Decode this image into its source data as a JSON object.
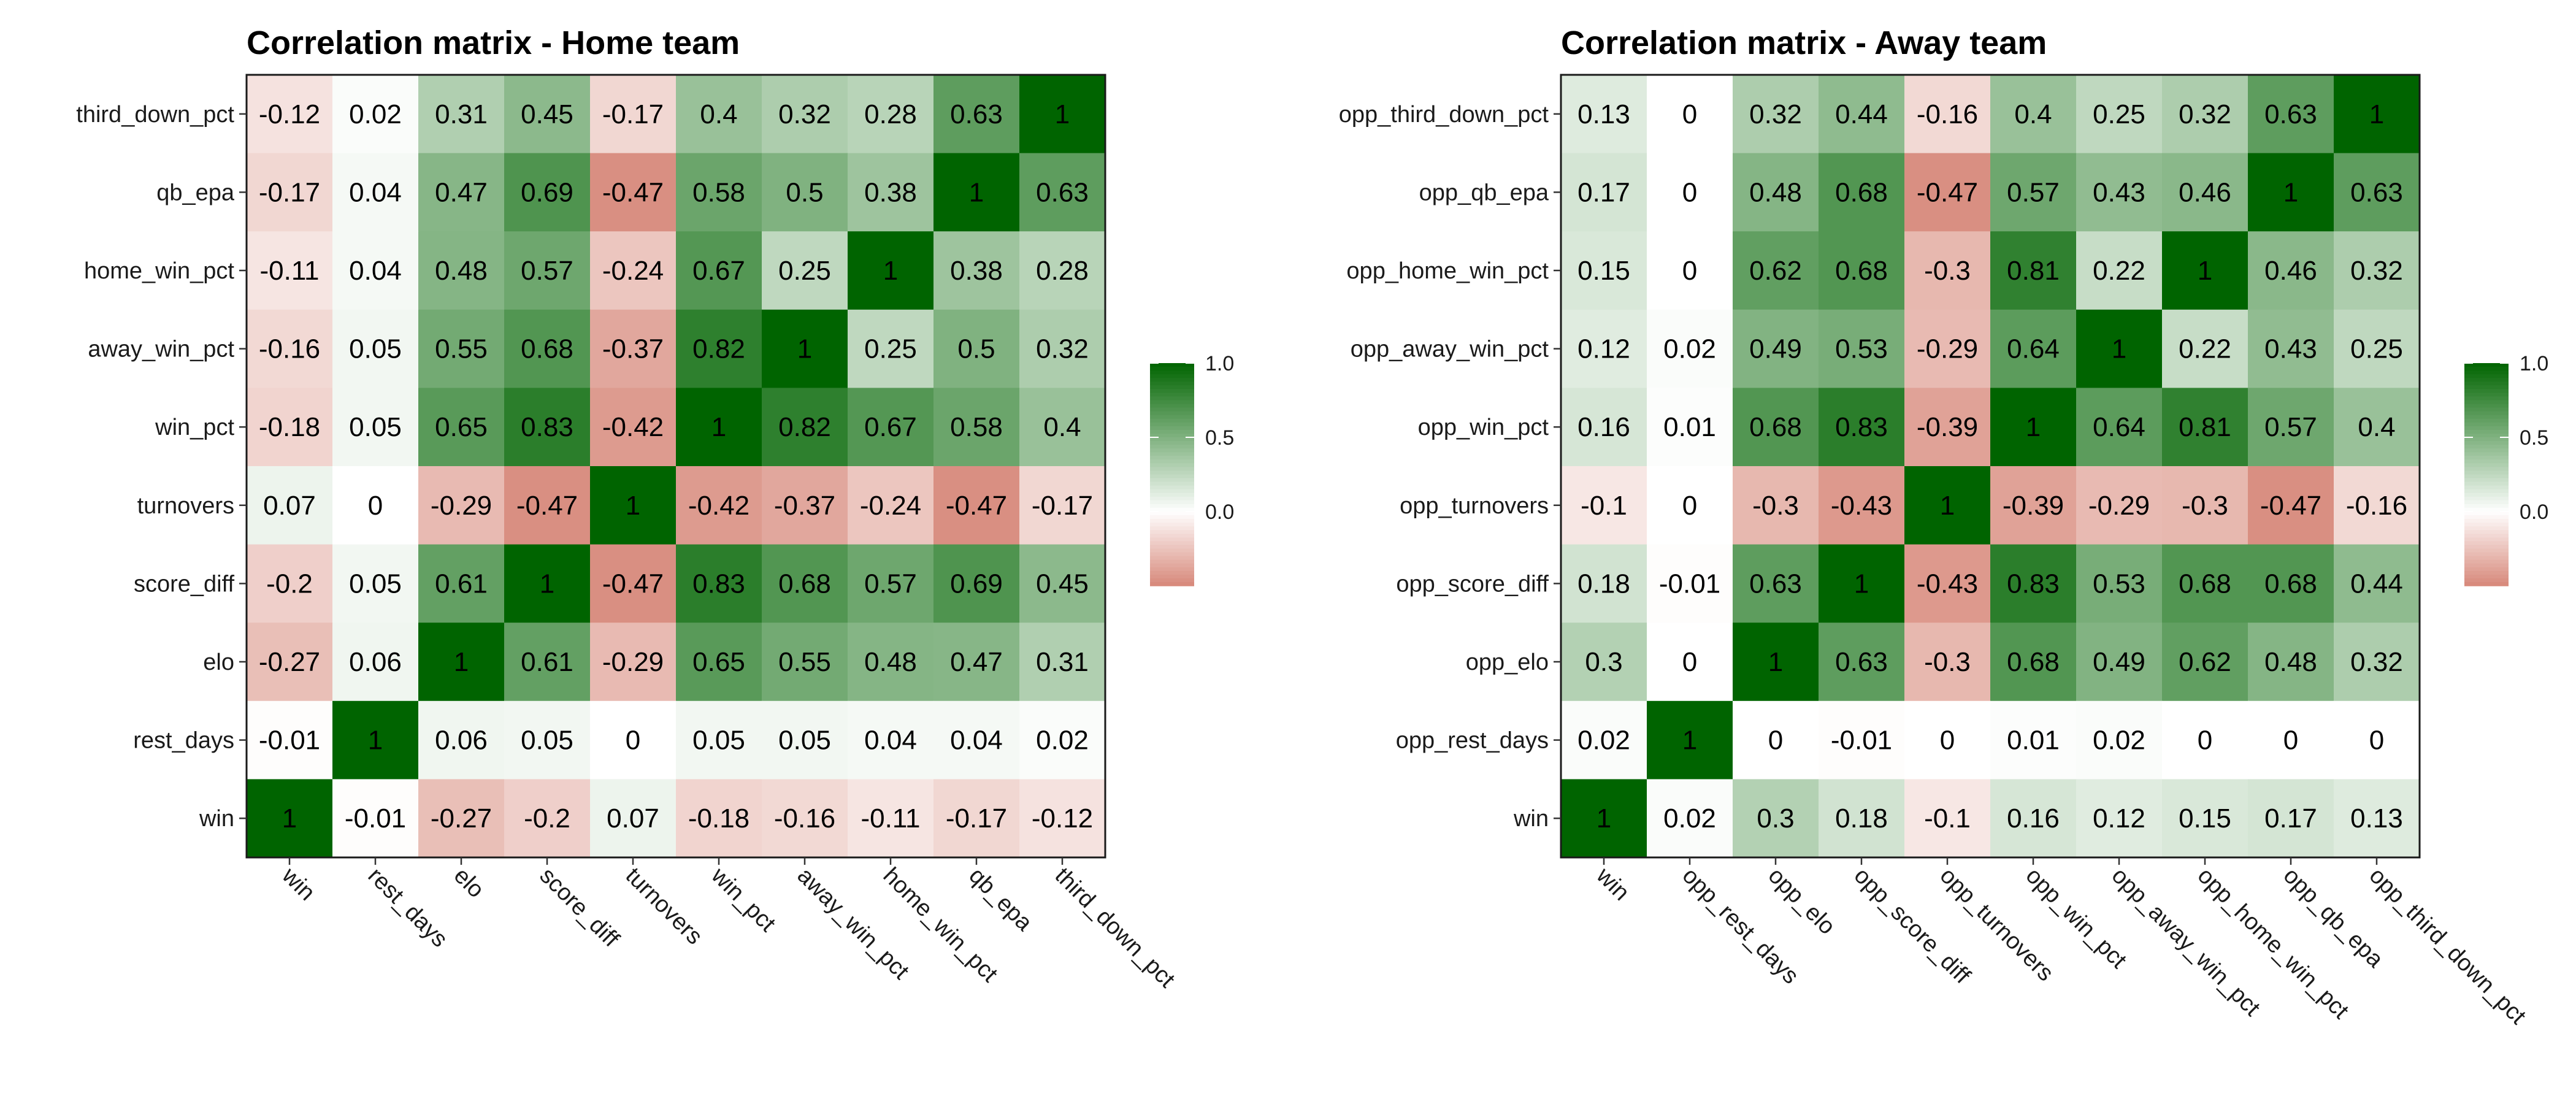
{
  "chart_data": [
    {
      "type": "heatmap",
      "title": "Correlation matrix - Home team",
      "x_labels": [
        "win",
        "rest_days",
        "elo",
        "score_diff",
        "turnovers",
        "win_pct",
        "away_win_pct",
        "home_win_pct",
        "qb_epa",
        "third_down_pct"
      ],
      "y_labels_top_to_bottom": [
        "third_down_pct",
        "qb_epa",
        "home_win_pct",
        "away_win_pct",
        "win_pct",
        "turnovers",
        "score_diff",
        "elo",
        "rest_days",
        "win"
      ],
      "values": [
        [
          -0.12,
          0.02,
          0.31,
          0.45,
          -0.17,
          0.4,
          0.32,
          0.28,
          0.63,
          1
        ],
        [
          -0.17,
          0.04,
          0.47,
          0.69,
          -0.47,
          0.58,
          0.5,
          0.38,
          1,
          0.63
        ],
        [
          -0.11,
          0.04,
          0.48,
          0.57,
          -0.24,
          0.67,
          0.25,
          1,
          0.38,
          0.28
        ],
        [
          -0.16,
          0.05,
          0.55,
          0.68,
          -0.37,
          0.82,
          1,
          0.25,
          0.5,
          0.32
        ],
        [
          -0.18,
          0.05,
          0.65,
          0.83,
          -0.42,
          1,
          0.82,
          0.67,
          0.58,
          0.4
        ],
        [
          0.07,
          0,
          -0.29,
          -0.47,
          1,
          -0.42,
          -0.37,
          -0.24,
          -0.47,
          -0.17
        ],
        [
          -0.2,
          0.05,
          0.61,
          1,
          -0.47,
          0.83,
          0.68,
          0.57,
          0.69,
          0.45
        ],
        [
          -0.27,
          0.06,
          1,
          0.61,
          -0.29,
          0.65,
          0.55,
          0.48,
          0.47,
          0.31
        ],
        [
          -0.01,
          1,
          0.06,
          0.05,
          0,
          0.05,
          0.05,
          0.04,
          0.04,
          0.02
        ],
        [
          1,
          -0.01,
          -0.27,
          -0.2,
          0.07,
          -0.18,
          -0.16,
          -0.11,
          -0.17,
          -0.12
        ]
      ],
      "color_scale": {
        "low": "#d7887a",
        "mid": "#ffffff",
        "high": "#006400",
        "domain": [
          -0.5,
          0,
          1
        ]
      },
      "legend": {
        "ticks": [
          "1.0",
          "0.5",
          "0.0"
        ],
        "tick_values": [
          1,
          0.5,
          0
        ],
        "placement": "right"
      }
    },
    {
      "type": "heatmap",
      "title": "Correlation matrix - Away team",
      "x_labels": [
        "win",
        "opp_rest_days",
        "opp_elo",
        "opp_score_diff",
        "opp_turnovers",
        "opp_win_pct",
        "opp_away_win_pct",
        "opp_home_win_pct",
        "opp_qb_epa",
        "opp_third_down_pct"
      ],
      "y_labels_top_to_bottom": [
        "opp_third_down_pct",
        "opp_qb_epa",
        "opp_home_win_pct",
        "opp_away_win_pct",
        "opp_win_pct",
        "opp_turnovers",
        "opp_score_diff",
        "opp_elo",
        "opp_rest_days",
        "win"
      ],
      "values": [
        [
          0.13,
          0,
          0.32,
          0.44,
          -0.16,
          0.4,
          0.25,
          0.32,
          0.63,
          1
        ],
        [
          0.17,
          0,
          0.48,
          0.68,
          -0.47,
          0.57,
          0.43,
          0.46,
          1,
          0.63
        ],
        [
          0.15,
          0,
          0.62,
          0.68,
          -0.3,
          0.81,
          0.22,
          1,
          0.46,
          0.32
        ],
        [
          0.12,
          0.02,
          0.49,
          0.53,
          -0.29,
          0.64,
          1,
          0.22,
          0.43,
          0.25
        ],
        [
          0.16,
          0.01,
          0.68,
          0.83,
          -0.39,
          1,
          0.64,
          0.81,
          0.57,
          0.4
        ],
        [
          -0.1,
          0,
          -0.3,
          -0.43,
          1,
          -0.39,
          -0.29,
          -0.3,
          -0.47,
          -0.16
        ],
        [
          0.18,
          -0.01,
          0.63,
          1,
          -0.43,
          0.83,
          0.53,
          0.68,
          0.68,
          0.44
        ],
        [
          0.3,
          0,
          1,
          0.63,
          -0.3,
          0.68,
          0.49,
          0.62,
          0.48,
          0.32
        ],
        [
          0.02,
          1,
          0,
          -0.01,
          0,
          0.01,
          0.02,
          0,
          0,
          0
        ],
        [
          1,
          0.02,
          0.3,
          0.18,
          -0.1,
          0.16,
          0.12,
          0.15,
          0.17,
          0.13
        ]
      ],
      "color_scale": {
        "low": "#d7887a",
        "mid": "#ffffff",
        "high": "#006400",
        "domain": [
          -0.5,
          0,
          1
        ]
      },
      "legend": {
        "ticks": [
          "1.0",
          "0.5",
          "0.0"
        ],
        "tick_values": [
          1,
          0.5,
          0
        ],
        "placement": "right"
      }
    }
  ]
}
